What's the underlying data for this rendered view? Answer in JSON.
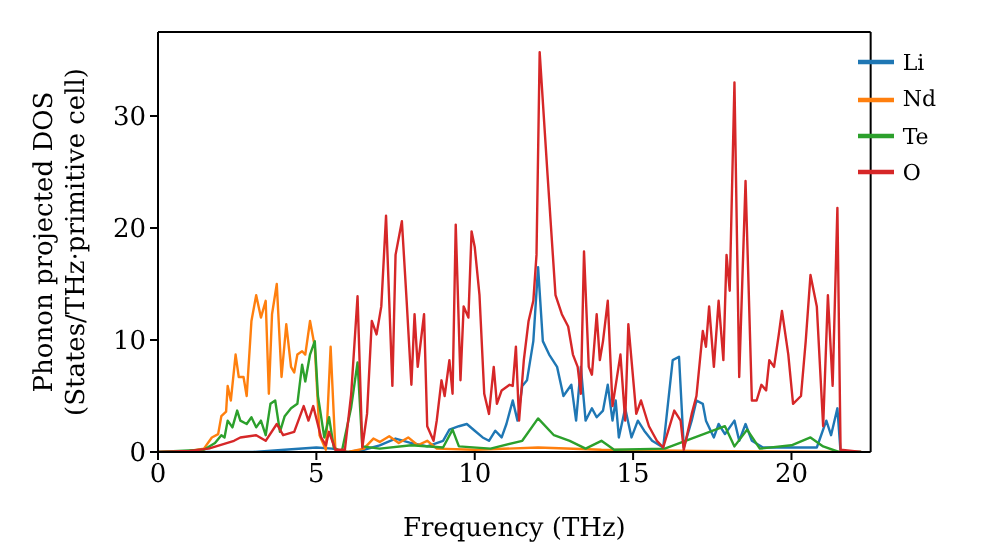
{
  "chart_data": {
    "type": "line",
    "xlabel": "Frequency (THz)",
    "ylabel": "Phonon projected DOS\n(States/THz·primitive cell)",
    "xlim": [
      0,
      22.5
    ],
    "ylim": [
      0,
      37.5
    ],
    "xticks": [
      0,
      5,
      10,
      15,
      20
    ],
    "yticks": [
      0,
      10,
      20,
      30
    ],
    "grid": false,
    "legend": "top right",
    "marker": "none",
    "line_style": "solid",
    "series": [
      {
        "name": "Li",
        "color": "#1f77b4",
        "x": [
          0,
          3,
          4,
          5,
          5.5,
          6,
          6.5,
          7,
          7.5,
          8,
          8.5,
          9,
          9.2,
          9.5,
          9.75,
          10,
          10.25,
          10.45,
          10.65,
          10.85,
          11,
          11.2,
          11.35,
          11.5,
          11.65,
          11.85,
          12,
          12.15,
          12.35,
          12.6,
          12.8,
          13.05,
          13.2,
          13.35,
          13.5,
          13.7,
          13.85,
          14.05,
          14.2,
          14.35,
          14.45,
          14.55,
          14.75,
          14.95,
          15.15,
          15.35,
          15.6,
          15.95,
          16.25,
          16.45,
          16.6,
          16.85,
          17,
          17.2,
          17.3,
          17.55,
          17.7,
          17.9,
          18.05,
          18.2,
          18.35,
          18.55,
          18.75,
          19.1,
          20.8,
          21.1,
          21.25,
          21.45,
          21.55,
          22.2
        ],
        "values": [
          0,
          0,
          0.2,
          0.4,
          0.3,
          0,
          0.2,
          0.6,
          1.2,
          0.8,
          0.5,
          1,
          2,
          2.3,
          2.5,
          1.9,
          1.3,
          1,
          1.9,
          1.3,
          2.5,
          4.6,
          2.8,
          5.9,
          6.4,
          9.9,
          16.5,
          9.9,
          8.7,
          7.6,
          5,
          6,
          2.8,
          7.6,
          2.8,
          3.9,
          3.1,
          3.7,
          6,
          2.8,
          4.6,
          1.3,
          3.9,
          1.3,
          2.8,
          1.9,
          1,
          0.4,
          8.2,
          8.5,
          0.4,
          2.8,
          4.6,
          4.3,
          2.8,
          1.3,
          2.5,
          1.6,
          2.2,
          2.8,
          1,
          2.5,
          1,
          0.4,
          0.4,
          2.8,
          1.5,
          3.9,
          0,
          0
        ]
      },
      {
        "name": "Nd",
        "color": "#ff7f0e",
        "x": [
          0,
          1,
          1.45,
          1.7,
          1.9,
          2,
          2.15,
          2.2,
          2.3,
          2.45,
          2.55,
          2.7,
          2.8,
          2.95,
          3.1,
          3.25,
          3.4,
          3.5,
          3.6,
          3.75,
          3.9,
          4.05,
          4.2,
          4.3,
          4.4,
          4.55,
          4.65,
          4.8,
          4.95,
          5.1,
          5.3,
          5.45,
          5.6,
          6,
          6.5,
          6.8,
          7,
          7.3,
          7.6,
          7.9,
          8.2,
          8.5,
          8.8,
          10,
          12,
          14,
          17,
          22.2
        ],
        "values": [
          0,
          0.1,
          0.3,
          1.3,
          1.6,
          3.2,
          3.6,
          5.9,
          4.6,
          8.7,
          6.7,
          6.7,
          5,
          11.7,
          14,
          12,
          13.5,
          5.2,
          12.3,
          15,
          6.7,
          11.4,
          7.6,
          7.1,
          8.7,
          9,
          8.7,
          11.7,
          9.4,
          1.5,
          0.2,
          9.4,
          0.2,
          0,
          0.3,
          1.2,
          0.9,
          1.4,
          0.8,
          1.3,
          0.6,
          1,
          0.3,
          0.2,
          0.4,
          0.2,
          0.1,
          0
        ]
      },
      {
        "name": "Te",
        "color": "#2ca02c",
        "x": [
          0,
          1.45,
          1.8,
          2,
          2.1,
          2.2,
          2.35,
          2.5,
          2.6,
          2.8,
          2.95,
          3.1,
          3.25,
          3.4,
          3.55,
          3.7,
          3.85,
          4,
          4.2,
          4.4,
          4.55,
          4.65,
          4.8,
          4.95,
          5.05,
          5.25,
          5.4,
          5.55,
          5.8,
          6.1,
          6.3,
          6.45,
          7,
          8,
          9,
          9.3,
          9.5,
          10.5,
          11.5,
          12,
          12.5,
          13,
          13.5,
          14,
          14.4,
          16,
          17.9,
          18.2,
          18.6,
          19,
          20,
          20.6,
          21,
          21.5,
          22.2
        ],
        "values": [
          0,
          0.2,
          0.8,
          1.5,
          1.3,
          2.8,
          2.2,
          3.7,
          2.8,
          2.5,
          3.1,
          2.2,
          2.8,
          1.5,
          4.3,
          4.6,
          1.8,
          3.2,
          3.9,
          4.3,
          7.8,
          6.3,
          8.7,
          9.9,
          5,
          1.3,
          3.1,
          0.4,
          0,
          4,
          8,
          0.5,
          0.3,
          0.6,
          0.4,
          2,
          0.5,
          0.3,
          1,
          3,
          1.5,
          1,
          0.3,
          1,
          0.2,
          0.3,
          2.3,
          0.5,
          2,
          0.3,
          0.6,
          1.3,
          0.5,
          0,
          0
        ]
      },
      {
        "name": "O",
        "color": "#d62728",
        "x": [
          0,
          1,
          1.6,
          2.4,
          2.6,
          3.1,
          3.4,
          3.75,
          3.95,
          4.3,
          4.6,
          4.75,
          4.9,
          5.15,
          5.3,
          5.4,
          5.6,
          5.9,
          6.1,
          6.3,
          6.45,
          6.6,
          6.75,
          6.9,
          7.05,
          7.2,
          7.4,
          7.5,
          7.7,
          7.85,
          8,
          8.1,
          8.2,
          8.4,
          8.5,
          8.7,
          8.8,
          8.95,
          9.05,
          9.2,
          9.3,
          9.4,
          9.55,
          9.65,
          9.8,
          9.9,
          10,
          10.15,
          10.3,
          10.45,
          10.6,
          10.7,
          10.85,
          11.1,
          11.2,
          11.3,
          11.4,
          11.55,
          11.7,
          11.85,
          11.95,
          12.05,
          12.3,
          12.55,
          12.75,
          12.95,
          13.1,
          13.25,
          13.35,
          13.45,
          13.6,
          13.7,
          13.85,
          13.95,
          14.05,
          14.2,
          14.35,
          14.6,
          14.75,
          14.85,
          15.1,
          15.25,
          15.5,
          15.75,
          15.95,
          16.3,
          16.5,
          16.6,
          16.85,
          17,
          17.2,
          17.3,
          17.4,
          17.55,
          17.7,
          17.85,
          17.95,
          18.05,
          18.2,
          18.35,
          18.55,
          18.75,
          18.9,
          19.05,
          19.2,
          19.3,
          19.45,
          19.6,
          19.7,
          19.9,
          20.05,
          20.3,
          20.45,
          20.6,
          20.8,
          21,
          21.15,
          21.3,
          21.45,
          21.55,
          22.2
        ],
        "values": [
          0,
          0.1,
          0.3,
          1,
          1.3,
          1.5,
          1,
          2.5,
          1.5,
          1.8,
          4.1,
          2.8,
          4.1,
          1.3,
          0.6,
          1.8,
          0.2,
          0.2,
          5.2,
          13.9,
          0.4,
          3.4,
          11.7,
          10.5,
          13,
          21.1,
          5.9,
          17.6,
          20.6,
          13.5,
          6,
          12.3,
          7.6,
          12.3,
          2.3,
          1,
          2.8,
          6.4,
          5,
          8.2,
          5.2,
          20.3,
          6.4,
          13,
          12,
          19.7,
          18.3,
          14,
          5.2,
          3.4,
          7.6,
          4.3,
          5.5,
          6,
          5.9,
          9.4,
          2.8,
          8.2,
          11.7,
          13.5,
          17.6,
          35.7,
          24.7,
          14,
          12.3,
          11.2,
          8.7,
          7.6,
          5.2,
          17.9,
          7.6,
          6.9,
          12.3,
          8.2,
          9.9,
          13.5,
          4.1,
          8.7,
          2.8,
          11.4,
          3.4,
          4.6,
          2.3,
          1,
          0.4,
          3.7,
          2.8,
          0.2,
          3.4,
          5,
          10.8,
          9.4,
          13,
          7.6,
          13.5,
          8.2,
          17.6,
          14.4,
          33,
          6.7,
          24.2,
          4.6,
          4.6,
          6,
          5.5,
          8.2,
          7.6,
          10.5,
          12.6,
          8.7,
          4.3,
          5,
          9.9,
          15.8,
          13,
          2.3,
          14,
          5.9,
          21.8,
          0.2,
          0
        ]
      }
    ]
  }
}
